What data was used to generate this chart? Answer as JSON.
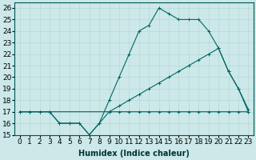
{
  "xlabel": "Humidex (Indice chaleur)",
  "bg_color": "#cce8e8",
  "line_color": "#006666",
  "grid_color": "#b8d8d8",
  "xlim": [
    -0.5,
    23.5
  ],
  "ylim": [
    15,
    26.5
  ],
  "xticks": [
    0,
    1,
    2,
    3,
    4,
    5,
    6,
    7,
    8,
    9,
    10,
    11,
    12,
    13,
    14,
    15,
    16,
    17,
    18,
    19,
    20,
    21,
    22,
    23
  ],
  "yticks": [
    15,
    16,
    17,
    18,
    19,
    20,
    21,
    22,
    23,
    24,
    25,
    26
  ],
  "line1_x": [
    0,
    1,
    2,
    3,
    4,
    5,
    6,
    7,
    8,
    9,
    10,
    11,
    12,
    13,
    14,
    15,
    16,
    17,
    18,
    19,
    20,
    21,
    22,
    23
  ],
  "line1_y": [
    17,
    17,
    17,
    17,
    16,
    16,
    16,
    15,
    16,
    17,
    17,
    17,
    17,
    17,
    17,
    17,
    17,
    17,
    17,
    17,
    17,
    17,
    17,
    17
  ],
  "line2_x": [
    0,
    1,
    2,
    3,
    4,
    5,
    6,
    7,
    8,
    9,
    10,
    11,
    12,
    13,
    14,
    15,
    16,
    17,
    18,
    19,
    20,
    21,
    22,
    23
  ],
  "line2_y": [
    17,
    17,
    17,
    17,
    16,
    16,
    16,
    15,
    16,
    18,
    20,
    22,
    24,
    24.5,
    26,
    25.5,
    25,
    25,
    25,
    24,
    22.5,
    20.5,
    19,
    17
  ],
  "line3_x": [
    0,
    1,
    9,
    10,
    11,
    12,
    13,
    14,
    15,
    16,
    17,
    18,
    19,
    20,
    21,
    22,
    23
  ],
  "line3_y": [
    17,
    17,
    17,
    17.5,
    18,
    18.5,
    19,
    19.5,
    20,
    20.5,
    21,
    21.5,
    22,
    22.5,
    20.5,
    19,
    17.2
  ],
  "fontsize_label": 7,
  "fontsize_tick": 6.5
}
